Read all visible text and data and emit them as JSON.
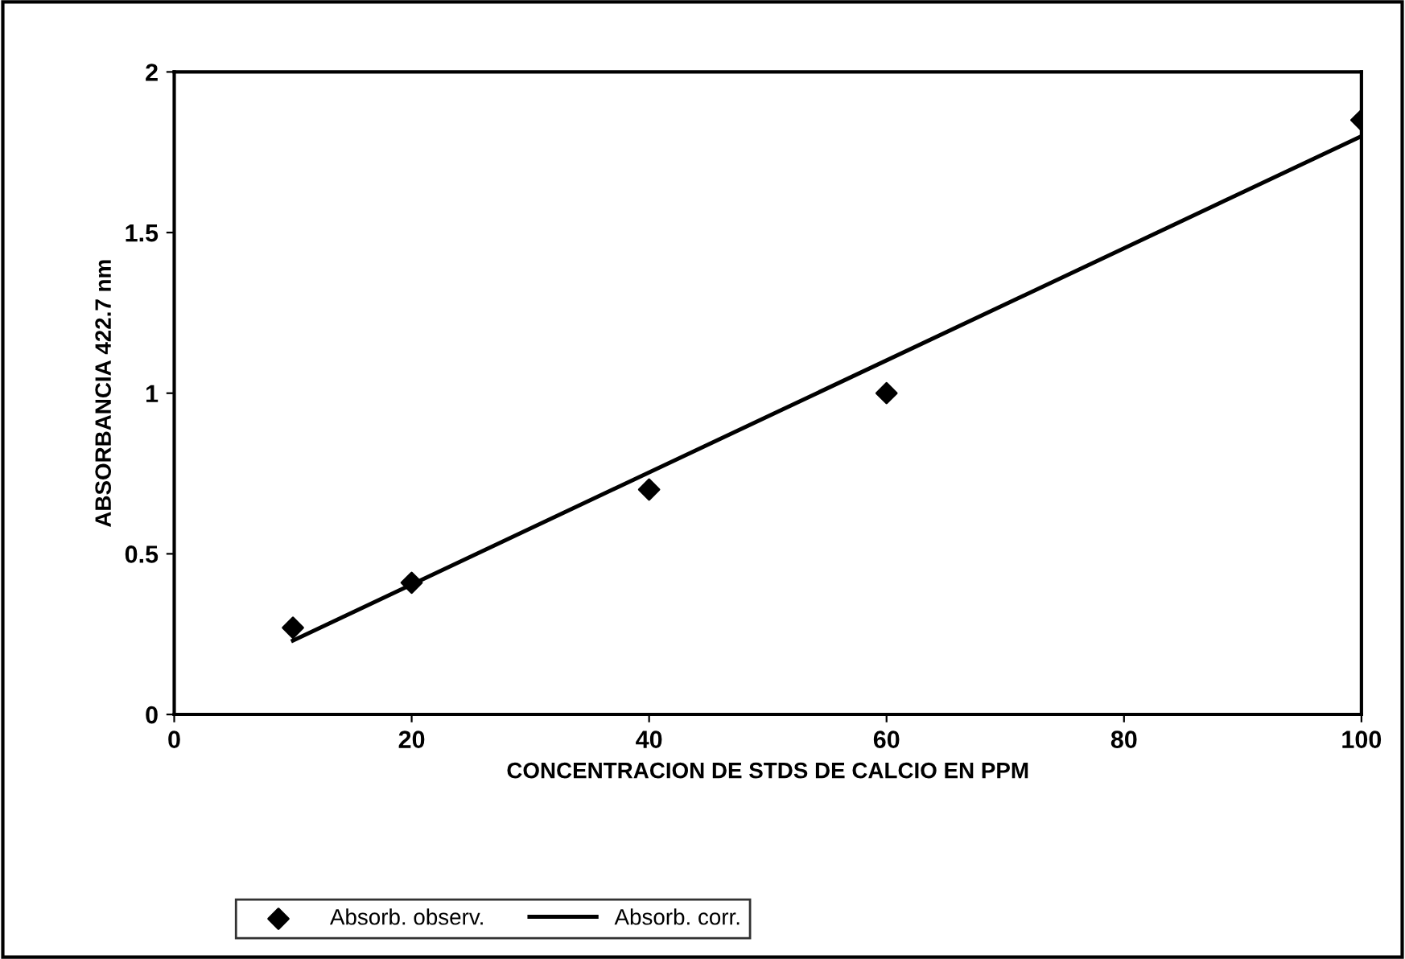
{
  "chart_data": {
    "type": "scatter",
    "xlabel": "CONCENTRACION DE STDS DE CALCIO EN PPM",
    "ylabel": "ABSORBANCIA 422.7 nm",
    "series": [
      {
        "name": "Absorb. observ.",
        "color": "#000000",
        "marker": "diamond",
        "x": [
          10,
          20,
          40,
          60,
          100
        ],
        "values": [
          0.27,
          0.41,
          0.7,
          1.0,
          1.85
        ]
      },
      {
        "name": "Absorb. corr.",
        "type": "line",
        "color": "#000000",
        "marker": "none",
        "line_style": "solid",
        "x": [
          10,
          100
        ],
        "values": [
          0.23,
          1.8
        ]
      }
    ],
    "xlim": [
      0,
      100
    ],
    "xticks": [
      0,
      20,
      40,
      60,
      80,
      100
    ],
    "ylim": [
      0,
      2
    ],
    "yticks": [
      0,
      0.5,
      1,
      1.5,
      2
    ],
    "grid": false,
    "legend": "bottom"
  }
}
